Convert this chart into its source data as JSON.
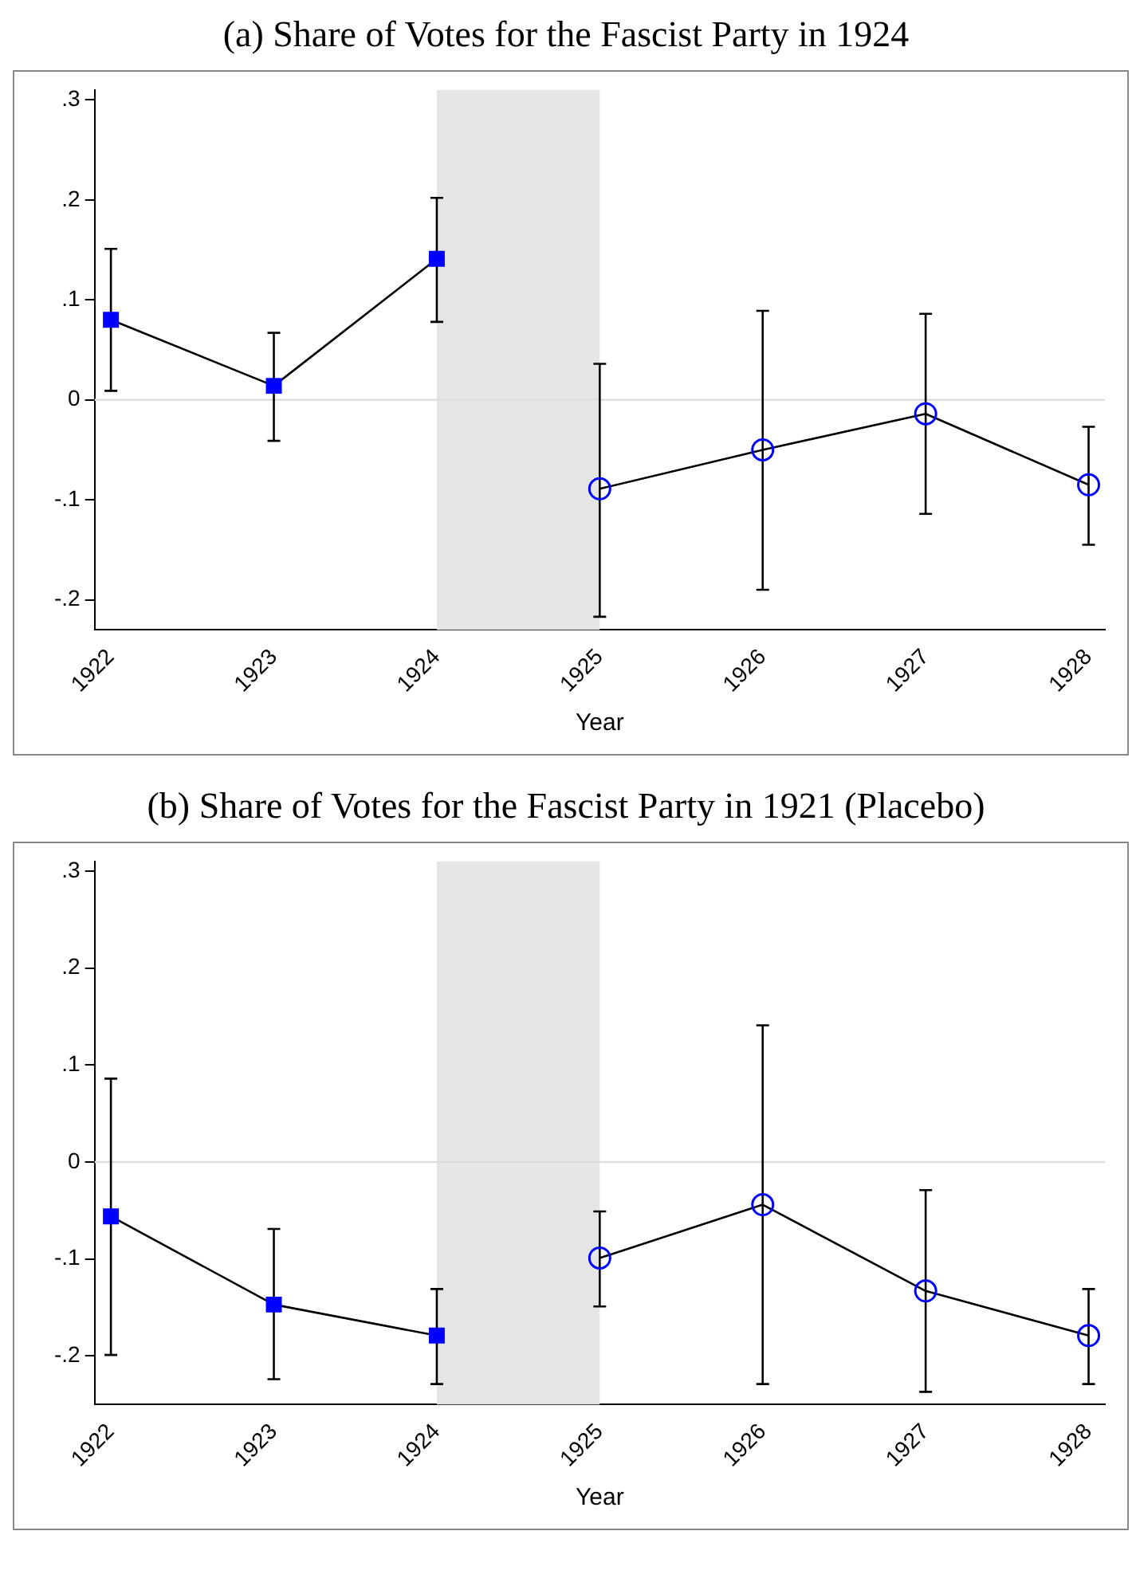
{
  "chart_data": [
    {
      "type": "line",
      "title": "(a) Share of Votes for the Fascist Party in 1924",
      "xlabel": "Year",
      "series": [
        {
          "color": "#0000ff",
          "marker": "square",
          "x": [
            1922,
            1923,
            1924
          ],
          "values": [
            0.08,
            0.014,
            0.141
          ],
          "errors": [
            [
              0.009,
              0.151
            ],
            [
              -0.041,
              0.067
            ],
            [
              0.078,
              0.202
            ]
          ]
        },
        {
          "color": "#0000ff",
          "marker": "circle",
          "x": [
            1925,
            1926,
            1927,
            1928
          ],
          "values": [
            -0.089,
            -0.05,
            -0.014,
            -0.085
          ],
          "errors": [
            [
              -0.217,
              0.036
            ],
            [
              -0.19,
              0.089
            ],
            [
              -0.114,
              0.086
            ],
            [
              -0.145,
              -0.027
            ]
          ]
        }
      ],
      "xlim": [
        1921.9,
        1928.1
      ],
      "xticks": [
        1922,
        1923,
        1924,
        1925,
        1926,
        1927,
        1928
      ],
      "ylim": [
        -0.23,
        0.31
      ],
      "yticks": [
        {
          "value": -0.2,
          "label": "-.2"
        },
        {
          "value": -0.1,
          "label": "-.1"
        },
        0,
        {
          "value": 0.1,
          "label": ".1"
        },
        {
          "value": 0.2,
          "label": ".2"
        },
        {
          "value": 0.3,
          "label": ".3"
        }
      ],
      "ref_lines": [
        {
          "axis": "y",
          "value": 0,
          "color": "#dddddd"
        }
      ],
      "bands": [
        {
          "axis": "x",
          "from": 1924,
          "to": 1925,
          "color": "#e5e5e5"
        }
      ],
      "grid": false,
      "legend": false
    },
    {
      "type": "line",
      "title": "(b) Share of Votes for the Fascist Party in 1921 (Placebo)",
      "xlabel": "Year",
      "series": [
        {
          "color": "#0000ff",
          "marker": "square",
          "x": [
            1922,
            1923,
            1924
          ],
          "values": [
            -0.056,
            -0.147,
            -0.179
          ],
          "errors": [
            [
              -0.199,
              0.086
            ],
            [
              -0.224,
              -0.069
            ],
            [
              -0.229,
              -0.131
            ]
          ]
        },
        {
          "color": "#0000ff",
          "marker": "circle",
          "x": [
            1925,
            1926,
            1927,
            1928
          ],
          "values": [
            -0.099,
            -0.044,
            -0.133,
            -0.179
          ],
          "errors": [
            [
              -0.149,
              -0.051
            ],
            [
              -0.229,
              0.141
            ],
            [
              -0.237,
              -0.029
            ],
            [
              -0.229,
              -0.131
            ]
          ]
        }
      ],
      "xlim": [
        1921.9,
        1928.1
      ],
      "xticks": [
        1922,
        1923,
        1924,
        1925,
        1926,
        1927,
        1928
      ],
      "ylim": [
        -0.25,
        0.31
      ],
      "yticks": [
        {
          "value": -0.2,
          "label": "-.2"
        },
        {
          "value": -0.1,
          "label": "-.1"
        },
        0,
        {
          "value": 0.1,
          "label": ".1"
        },
        {
          "value": 0.2,
          "label": ".2"
        },
        {
          "value": 0.3,
          "label": ".3"
        }
      ],
      "ref_lines": [
        {
          "axis": "y",
          "value": 0,
          "color": "#dddddd"
        }
      ],
      "bands": [
        {
          "axis": "x",
          "from": 1924,
          "to": 1925,
          "color": "#e5e5e5"
        }
      ],
      "grid": false,
      "legend": false
    }
  ]
}
